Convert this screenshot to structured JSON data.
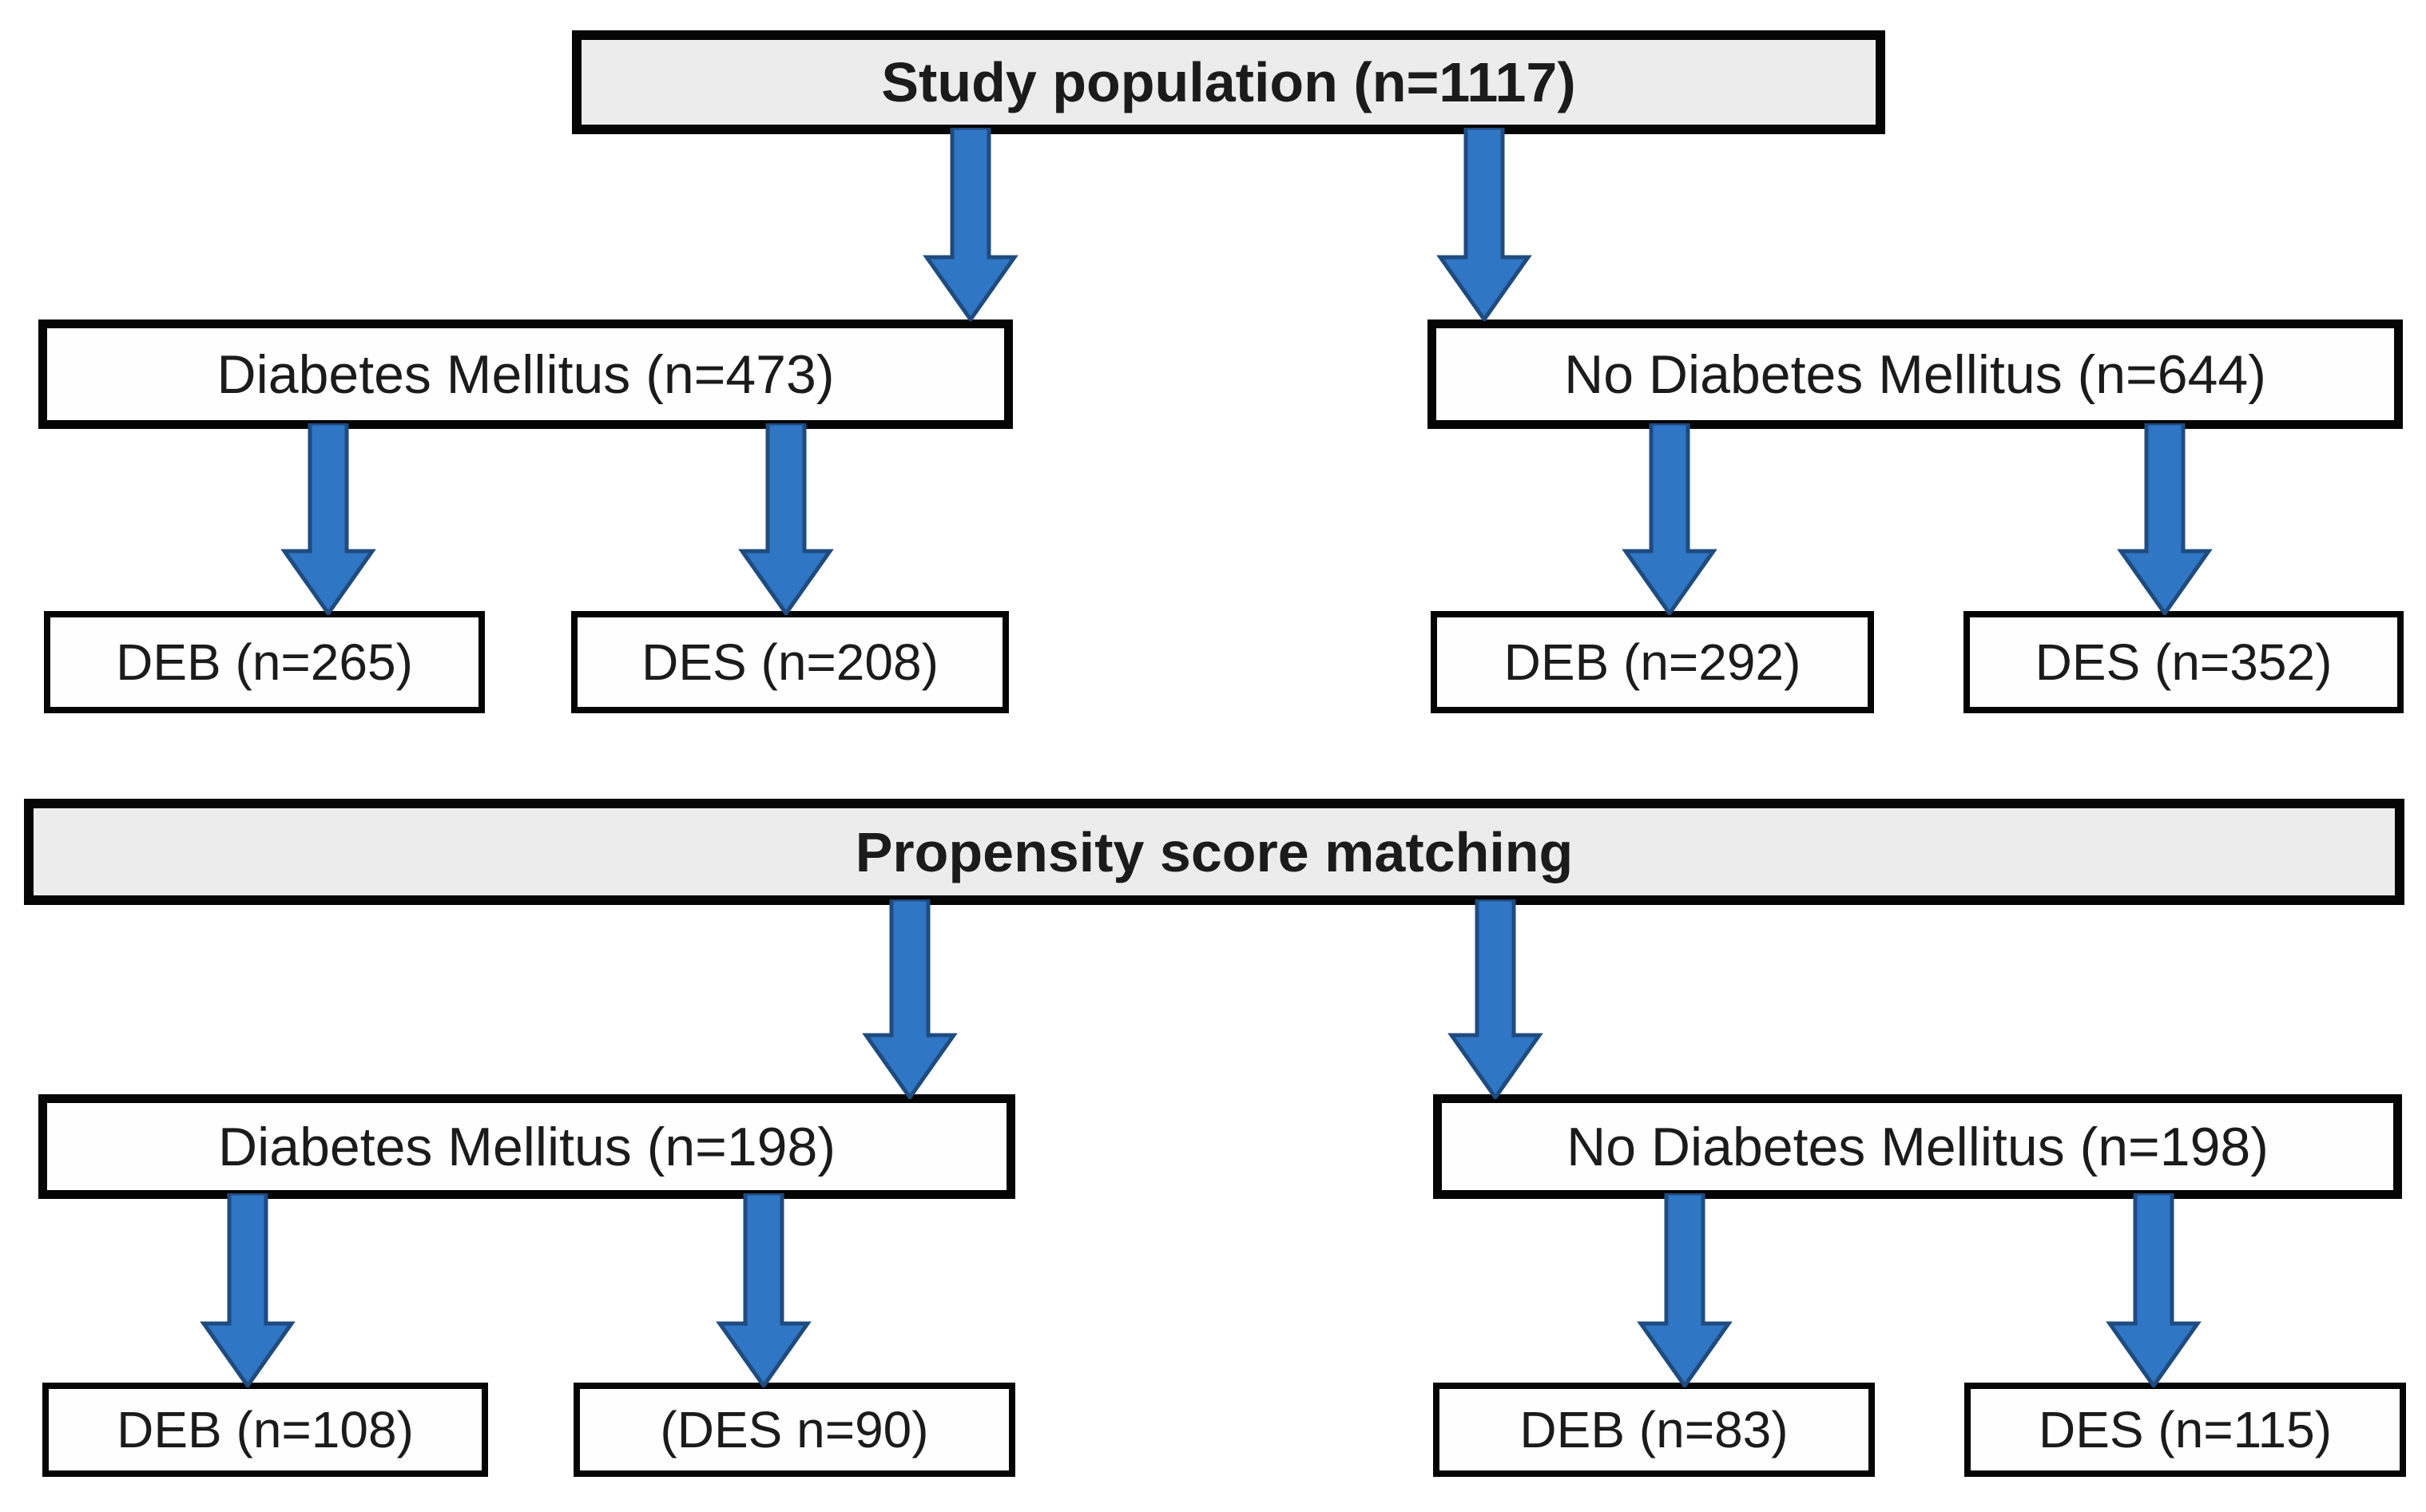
{
  "figure": {
    "background": "#FFFFFF",
    "colors": {
      "arrow_fill": "#2F76C4",
      "arrow_outline": "#1F4B7F",
      "header_fill": "#ECECEC",
      "node_fill": "#FEFEFE",
      "node_border": "#050505",
      "text": "#1B1B1B"
    },
    "nodes": {
      "study": {
        "label": "Study population (n=1117)"
      },
      "dm": {
        "label": "Diabetes Mellitus (n=473)"
      },
      "no_dm": {
        "label": "No Diabetes Mellitus (n=644)"
      },
      "dm_deb": {
        "label": "DEB (n=265)"
      },
      "dm_des": {
        "label": "DES (n=208)"
      },
      "no_dm_deb": {
        "label": "DEB (n=292)"
      },
      "no_dm_des": {
        "label": "DES (n=352)"
      },
      "psm": {
        "label": "Propensity score matching"
      },
      "dm_matched": {
        "label": "Diabetes Mellitus (n=198)"
      },
      "no_dm_matched": {
        "label": "No Diabetes Mellitus (n=198)"
      },
      "dm_matched_deb": {
        "label": "DEB (n=108)"
      },
      "dm_matched_des": {
        "label": "(DES n=90)"
      },
      "no_dm_matched_deb": {
        "label": "DEB (n=83)"
      },
      "no_dm_matched_des": {
        "label": "DES (n=115)"
      }
    },
    "edges": [
      {
        "from": "study",
        "to": "dm"
      },
      {
        "from": "study",
        "to": "no_dm"
      },
      {
        "from": "dm",
        "to": "dm_deb"
      },
      {
        "from": "dm",
        "to": "dm_des"
      },
      {
        "from": "no_dm",
        "to": "no_dm_deb"
      },
      {
        "from": "no_dm",
        "to": "no_dm_des"
      },
      {
        "from": "psm",
        "to": "dm_matched"
      },
      {
        "from": "psm",
        "to": "no_dm_matched"
      },
      {
        "from": "dm_matched",
        "to": "dm_matched_deb"
      },
      {
        "from": "dm_matched",
        "to": "dm_matched_des"
      },
      {
        "from": "no_dm_matched",
        "to": "no_dm_matched_deb"
      },
      {
        "from": "no_dm_matched",
        "to": "no_dm_matched_des"
      }
    ]
  }
}
